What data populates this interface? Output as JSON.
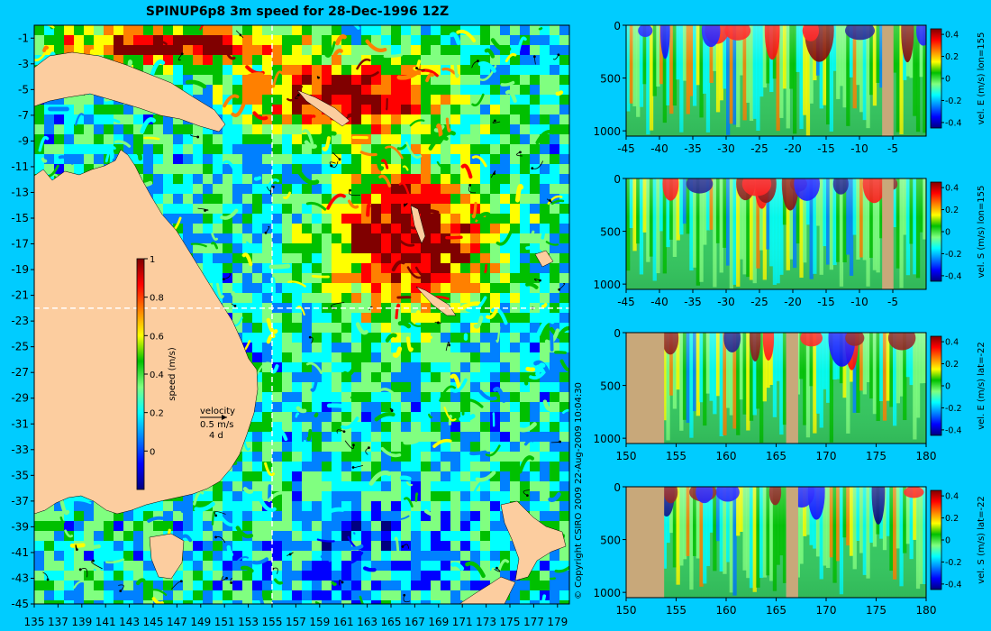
{
  "title": "SPINUP6p8 3m speed for 28-Dec-1996 12Z",
  "copyright": "© Copyright CSIRO 2009   22-Aug-2009 10:04:30",
  "colors": {
    "background": "#00ccff",
    "land": "#fccd9f",
    "seabed": "#c8a87a",
    "crosshair": "#ffffff"
  },
  "colormap": [
    "#00007f",
    "#0000ff",
    "#0080ff",
    "#00ffff",
    "#80ff80",
    "#00c000",
    "#ffff00",
    "#ff8000",
    "#ff0000",
    "#800000"
  ],
  "map": {
    "x_ticks": [
      "135",
      "137",
      "139",
      "141",
      "143",
      "145",
      "147",
      "149",
      "151",
      "153",
      "155",
      "157",
      "159",
      "161",
      "163",
      "165",
      "167",
      "169",
      "171",
      "173",
      "175",
      "177",
      "179"
    ],
    "y_ticks": [
      "-1",
      "-3",
      "-5",
      "-7",
      "-9",
      "-11",
      "-13",
      "-15",
      "-17",
      "-19",
      "-21",
      "-23",
      "-25",
      "-27",
      "-29",
      "-31",
      "-33",
      "-35",
      "-37",
      "-39",
      "-41",
      "-43",
      "-45"
    ],
    "lon_range": [
      135,
      180
    ],
    "lat_range": [
      -45,
      0
    ],
    "crosshair_lon": 155,
    "crosshair_lat": -22,
    "colorbar": {
      "label": "speed (m/s)",
      "ticks": [
        "1",
        "0.8",
        "0.6",
        "0.4",
        "0.2",
        "0"
      ],
      "range": [
        -0.2,
        1.0
      ]
    },
    "velocity_key": {
      "line1": "velocity",
      "line2": "0.5 m/s",
      "line3": "4 d"
    }
  },
  "chart_data": [
    {
      "type": "heatmap",
      "quantity": "vel. E (m/s) lon=155",
      "x_ticks": [
        "-45",
        "-40",
        "-35",
        "-30",
        "-25",
        "-20",
        "-15",
        "-10",
        "-5"
      ],
      "y_ticks": [
        "0",
        "500",
        "1000"
      ],
      "xlim": [
        -45,
        0
      ],
      "ylim": [
        0,
        1050
      ],
      "colorbar_ticks": [
        "0.4",
        "0.2",
        "0",
        "-0.2",
        "-0.4"
      ],
      "crange": [
        -0.45,
        0.45
      ],
      "land": [
        [
          -6.6,
          -4.9
        ]
      ]
    },
    {
      "type": "heatmap",
      "quantity": "vel. S (m/s) lon=155",
      "x_ticks": [
        "-45",
        "-40",
        "-35",
        "-30",
        "-25",
        "-20",
        "-15",
        "-10",
        "-5"
      ],
      "y_ticks": [
        "0",
        "500",
        "1000"
      ],
      "xlim": [
        -45,
        0
      ],
      "ylim": [
        0,
        1050
      ],
      "colorbar_ticks": [
        "0.4",
        "0.2",
        "0",
        "-0.2",
        "-0.4"
      ],
      "crange": [
        -0.45,
        0.45
      ],
      "land": [
        [
          -6.6,
          -4.9
        ]
      ]
    },
    {
      "type": "heatmap",
      "quantity": "vel. E (m/s) lat=-22",
      "x_ticks": [
        "150",
        "155",
        "160",
        "165",
        "170",
        "175",
        "180"
      ],
      "y_ticks": [
        "0",
        "500",
        "1000"
      ],
      "xlim": [
        150,
        180
      ],
      "ylim": [
        0,
        1050
      ],
      "colorbar_ticks": [
        "0.4",
        "0.2",
        "0",
        "-0.2",
        "-0.4"
      ],
      "crange": [
        -0.45,
        0.45
      ],
      "land": [
        [
          150,
          153.8
        ],
        [
          166.0,
          167.2
        ]
      ]
    },
    {
      "type": "heatmap",
      "quantity": "vel. S (m/s) lat=-22",
      "x_ticks": [
        "150",
        "155",
        "160",
        "165",
        "170",
        "175",
        "180"
      ],
      "y_ticks": [
        "0",
        "500",
        "1000"
      ],
      "xlim": [
        150,
        180
      ],
      "ylim": [
        0,
        1050
      ],
      "colorbar_ticks": [
        "0.4",
        "0.2",
        "0",
        "-0.2",
        "-0.4"
      ],
      "crange": [
        -0.45,
        0.45
      ],
      "land": [
        [
          150,
          153.8
        ],
        [
          166.0,
          167.2
        ]
      ]
    }
  ]
}
